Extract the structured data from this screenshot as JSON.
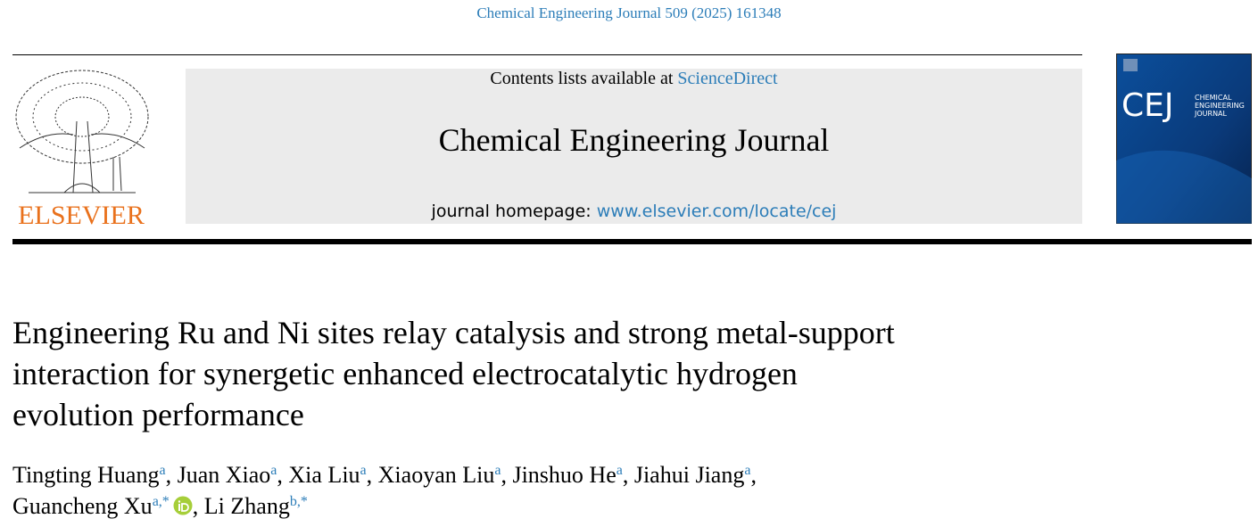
{
  "header": {
    "citation": "Chemical Engineering Journal 509 (2025) 161348",
    "contents_prefix": "Contents lists available at ",
    "contents_link": "ScienceDirect",
    "journal": "Chemical Engineering Journal",
    "homepage_prefix": "journal homepage: ",
    "homepage_link": "www.elsevier.com/locate/cej",
    "publisher": "ELSEVIER",
    "cover": {
      "abbrev": "CEJ",
      "name": [
        "CHEMICAL",
        "ENGINEERING",
        "JOURNAL"
      ]
    }
  },
  "article": {
    "title_lines": [
      "Engineering Ru and Ni sites relay catalysis and strong metal-support",
      "interaction for synergetic enhanced electrocatalytic hydrogen",
      "evolution performance"
    ],
    "separator": ", ",
    "author_lines": [
      [
        {
          "name": "Tingting Huang",
          "sup": "a"
        },
        {
          "name": "Juan Xiao",
          "sup": "a"
        },
        {
          "name": "Xia Liu",
          "sup": "a"
        },
        {
          "name": "Xiaoyan Liu",
          "sup": "a"
        },
        {
          "name": "Jinshuo He",
          "sup": "a"
        },
        {
          "name": "Jiahui Jiang",
          "sup": "a"
        }
      ],
      [
        {
          "name": "Guancheng Xu",
          "sup": "a,*",
          "orcid": true
        },
        {
          "name": "Li Zhang",
          "sup": "b,*"
        }
      ]
    ]
  }
}
